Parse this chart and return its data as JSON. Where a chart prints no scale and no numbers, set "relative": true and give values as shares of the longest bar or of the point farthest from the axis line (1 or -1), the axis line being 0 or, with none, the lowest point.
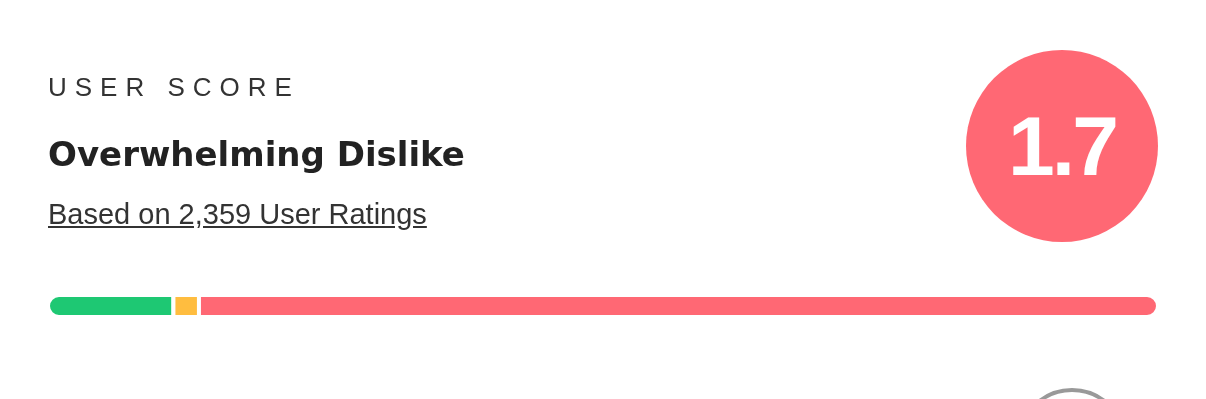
{
  "chart_data": {
    "type": "bar",
    "title": "USER SCORE",
    "subtitle": "Overwhelming Dislike",
    "annotations": [
      "Based on 2,359 User Ratings",
      "1.7"
    ],
    "orientation": "horizontal",
    "stacked": true,
    "relative": true,
    "categories": [
      null
    ],
    "series": [
      {
        "color": "#1ec873",
        "values": [
          0.113
        ]
      },
      {
        "color": "#ffbd3f",
        "values": [
          0.023
        ]
      },
      {
        "color": "#ff6874",
        "values": [
          0.864
        ]
      }
    ]
  }
}
